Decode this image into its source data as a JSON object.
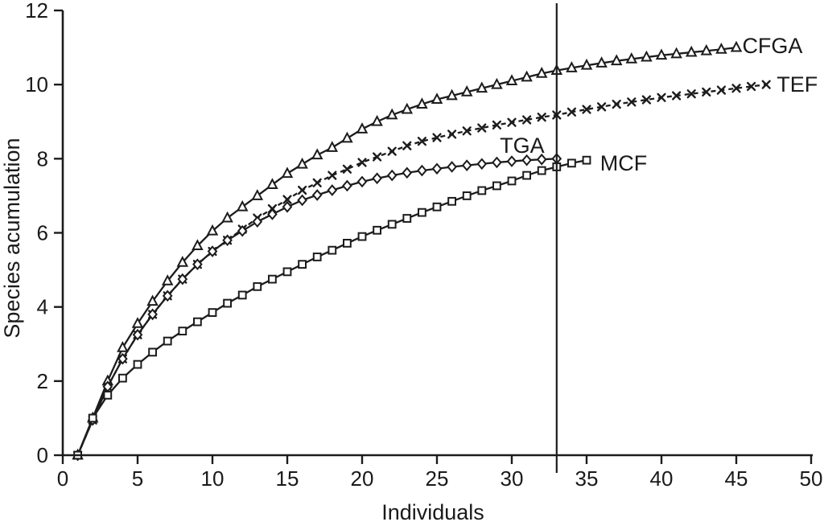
{
  "figure": {
    "background": "#ffffff",
    "ink_color": "#1c1c1c"
  },
  "chart_data": {
    "type": "line",
    "title": "",
    "xlabel": "Individuals",
    "ylabel": "Species acumulation",
    "xlim": [
      0,
      50
    ],
    "ylim": [
      0,
      12
    ],
    "x_ticks": [
      0,
      5,
      10,
      15,
      20,
      25,
      30,
      35,
      40,
      45,
      50
    ],
    "y_ticks": [
      0,
      2,
      4,
      6,
      8,
      10,
      12
    ],
    "grid": false,
    "legend_position": "inline-end-labels",
    "annotations": [
      {
        "type": "vline",
        "x": 33,
        "style": "solid"
      }
    ],
    "series": [
      {
        "name": "CFGA",
        "marker": "triangle",
        "line": "solid",
        "color": "#1c1c1c",
        "label_pos": {
          "x": 45.4,
          "y": 11.05
        },
        "points": [
          [
            1,
            0
          ],
          [
            2,
            1.0
          ],
          [
            3,
            2.0
          ],
          [
            4,
            2.9
          ],
          [
            5,
            3.55
          ],
          [
            6,
            4.15
          ],
          [
            7,
            4.7
          ],
          [
            8,
            5.2
          ],
          [
            9,
            5.65
          ],
          [
            10,
            6.05
          ],
          [
            11,
            6.4
          ],
          [
            12,
            6.7
          ],
          [
            13,
            7.0
          ],
          [
            14,
            7.3
          ],
          [
            15,
            7.6
          ],
          [
            16,
            7.85
          ],
          [
            17,
            8.1
          ],
          [
            18,
            8.3
          ],
          [
            19,
            8.55
          ],
          [
            20,
            8.8
          ],
          [
            21,
            9.0
          ],
          [
            22,
            9.18
          ],
          [
            23,
            9.33
          ],
          [
            24,
            9.47
          ],
          [
            25,
            9.6
          ],
          [
            26,
            9.7
          ],
          [
            27,
            9.8
          ],
          [
            28,
            9.9
          ],
          [
            29,
            10.0
          ],
          [
            30,
            10.1
          ],
          [
            31,
            10.2
          ],
          [
            32,
            10.3
          ],
          [
            33,
            10.38
          ],
          [
            34,
            10.45
          ],
          [
            35,
            10.52
          ],
          [
            36,
            10.58
          ],
          [
            37,
            10.64
          ],
          [
            38,
            10.69
          ],
          [
            39,
            10.74
          ],
          [
            40,
            10.79
          ],
          [
            41,
            10.83
          ],
          [
            42,
            10.87
          ],
          [
            43,
            10.91
          ],
          [
            44,
            10.95
          ],
          [
            45,
            11.0
          ]
        ]
      },
      {
        "name": "TEF",
        "marker": "x",
        "line": "dashed",
        "color": "#1c1c1c",
        "label_pos": {
          "x": 47.7,
          "y": 10.0
        },
        "points": [
          [
            1,
            0
          ],
          [
            2,
            0.95
          ],
          [
            3,
            1.85
          ],
          [
            4,
            2.6
          ],
          [
            5,
            3.25
          ],
          [
            6,
            3.8
          ],
          [
            7,
            4.3
          ],
          [
            8,
            4.75
          ],
          [
            9,
            5.15
          ],
          [
            10,
            5.5
          ],
          [
            11,
            5.8
          ],
          [
            12,
            6.1
          ],
          [
            13,
            6.4
          ],
          [
            14,
            6.65
          ],
          [
            15,
            6.9
          ],
          [
            16,
            7.15
          ],
          [
            17,
            7.35
          ],
          [
            18,
            7.55
          ],
          [
            19,
            7.72
          ],
          [
            20,
            7.9
          ],
          [
            21,
            8.05
          ],
          [
            22,
            8.2
          ],
          [
            23,
            8.35
          ],
          [
            24,
            8.47
          ],
          [
            25,
            8.57
          ],
          [
            26,
            8.66
          ],
          [
            27,
            8.75
          ],
          [
            28,
            8.83
          ],
          [
            29,
            8.91
          ],
          [
            30,
            8.98
          ],
          [
            31,
            9.05
          ],
          [
            32,
            9.12
          ],
          [
            33,
            9.18
          ],
          [
            34,
            9.26
          ],
          [
            35,
            9.33
          ],
          [
            36,
            9.4
          ],
          [
            37,
            9.47
          ],
          [
            38,
            9.53
          ],
          [
            39,
            9.59
          ],
          [
            40,
            9.65
          ],
          [
            41,
            9.7
          ],
          [
            42,
            9.75
          ],
          [
            43,
            9.8
          ],
          [
            44,
            9.85
          ],
          [
            45,
            9.9
          ],
          [
            46,
            9.95
          ],
          [
            47,
            10.0
          ]
        ]
      },
      {
        "name": "TGA",
        "marker": "diamond",
        "line": "solid",
        "color": "#1c1c1c",
        "label_pos": {
          "x": 29.2,
          "y": 8.35
        },
        "points": [
          [
            1,
            0
          ],
          [
            2,
            0.95
          ],
          [
            3,
            1.85
          ],
          [
            4,
            2.6
          ],
          [
            5,
            3.25
          ],
          [
            6,
            3.8
          ],
          [
            7,
            4.3
          ],
          [
            8,
            4.75
          ],
          [
            9,
            5.15
          ],
          [
            10,
            5.5
          ],
          [
            11,
            5.8
          ],
          [
            12,
            6.05
          ],
          [
            13,
            6.3
          ],
          [
            14,
            6.5
          ],
          [
            15,
            6.7
          ],
          [
            16,
            6.88
          ],
          [
            17,
            7.02
          ],
          [
            18,
            7.15
          ],
          [
            19,
            7.27
          ],
          [
            20,
            7.38
          ],
          [
            21,
            7.47
          ],
          [
            22,
            7.55
          ],
          [
            23,
            7.62
          ],
          [
            24,
            7.68
          ],
          [
            25,
            7.73
          ],
          [
            26,
            7.78
          ],
          [
            27,
            7.82
          ],
          [
            28,
            7.86
          ],
          [
            29,
            7.9
          ],
          [
            30,
            7.93
          ],
          [
            31,
            7.96
          ],
          [
            32,
            7.98
          ],
          [
            33,
            8.0
          ]
        ]
      },
      {
        "name": "MCF",
        "marker": "square",
        "line": "solid",
        "color": "#1c1c1c",
        "label_pos": {
          "x": 35.9,
          "y": 7.88
        },
        "points": [
          [
            1,
            0
          ],
          [
            2,
            1.0
          ],
          [
            3,
            1.62
          ],
          [
            4,
            2.08
          ],
          [
            5,
            2.45
          ],
          [
            6,
            2.78
          ],
          [
            7,
            3.08
          ],
          [
            8,
            3.35
          ],
          [
            9,
            3.6
          ],
          [
            10,
            3.85
          ],
          [
            11,
            4.1
          ],
          [
            12,
            4.32
          ],
          [
            13,
            4.55
          ],
          [
            14,
            4.75
          ],
          [
            15,
            4.95
          ],
          [
            16,
            5.15
          ],
          [
            17,
            5.35
          ],
          [
            18,
            5.53
          ],
          [
            19,
            5.72
          ],
          [
            20,
            5.9
          ],
          [
            21,
            6.07
          ],
          [
            22,
            6.23
          ],
          [
            23,
            6.39
          ],
          [
            24,
            6.55
          ],
          [
            25,
            6.7
          ],
          [
            26,
            6.85
          ],
          [
            27,
            7.0
          ],
          [
            28,
            7.14
          ],
          [
            29,
            7.27
          ],
          [
            30,
            7.4
          ],
          [
            31,
            7.55
          ],
          [
            32,
            7.68
          ],
          [
            33,
            7.78
          ],
          [
            34,
            7.88
          ],
          [
            35,
            7.96
          ]
        ]
      }
    ]
  }
}
